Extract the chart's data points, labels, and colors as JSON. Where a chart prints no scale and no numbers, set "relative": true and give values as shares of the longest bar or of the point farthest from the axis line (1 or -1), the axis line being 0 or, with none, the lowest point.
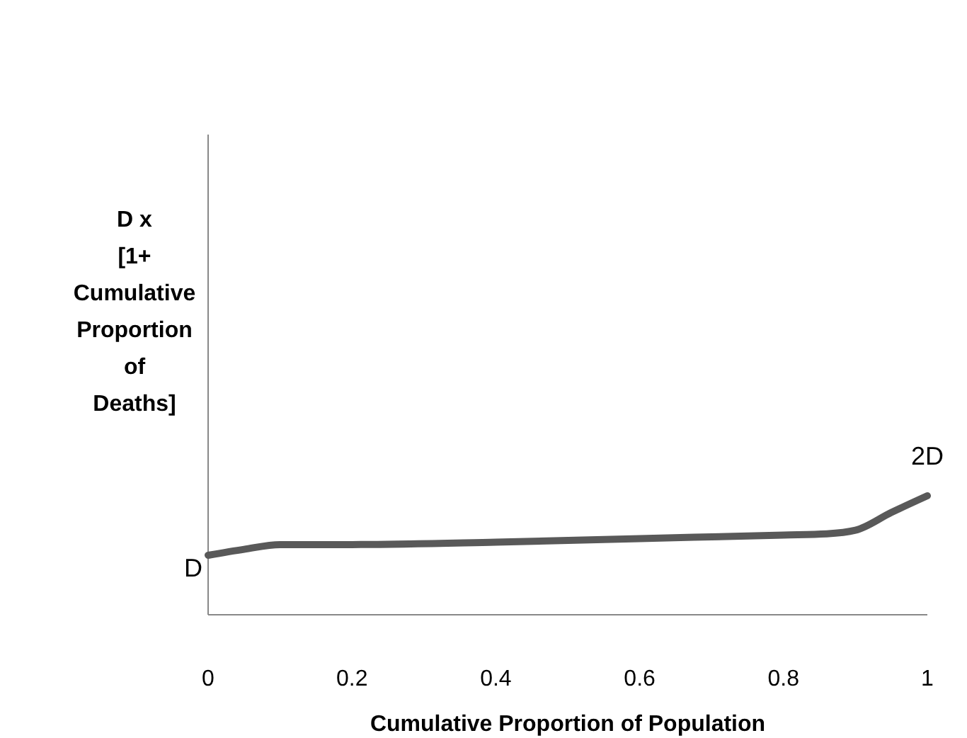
{
  "chart_data": {
    "type": "line",
    "relative": true,
    "xlabel": "Cumulative Proportion of Population",
    "ylabel": "D x [1+ Cumulative Proportion of Deaths]",
    "x": [
      0,
      0.05,
      0.1,
      0.2,
      0.4,
      0.6,
      0.8,
      0.86,
      0.9,
      0.95,
      1
    ],
    "series": [
      {
        "color": "#595959",
        "values": [
          0.5,
          0.55,
          0.59,
          0.59,
          0.61,
          0.64,
          0.67,
          0.68,
          0.71,
          0.86,
          1
        ]
      }
    ],
    "xlim": [
      0,
      1
    ],
    "xticks": [
      0,
      0.2,
      0.4,
      0.6,
      0.8,
      1
    ],
    "grid": false,
    "marker": "none",
    "line_style": "solid",
    "annotations": [
      {
        "text": "D",
        "x": 0,
        "y": 0.5
      },
      {
        "text": "2D",
        "x": 1,
        "y": 1
      }
    ]
  }
}
